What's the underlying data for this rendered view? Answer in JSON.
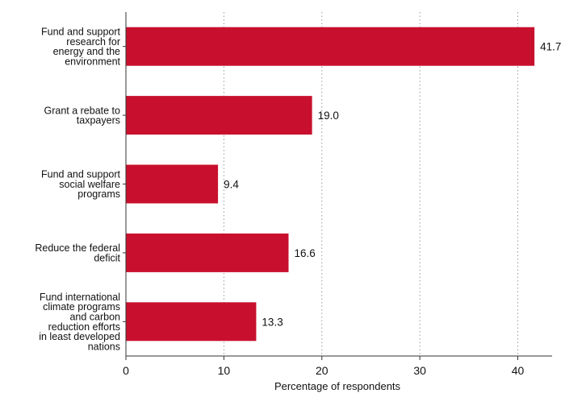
{
  "chart_data": {
    "type": "bar",
    "orientation": "horizontal",
    "categories": [
      "Fund and support research for energy and the environment",
      "Grant a rebate to taxpayers",
      "Fund and support social welfare programs",
      "Reduce the federal deficit",
      "Fund international climate programs and carbon reduction efforts in least developed nations"
    ],
    "category_lines": [
      [
        "Fund and support",
        "research for",
        "energy and the",
        "environment"
      ],
      [
        "Grant a rebate to",
        "taxpayers"
      ],
      [
        "Fund and support",
        "social welfare",
        "programs"
      ],
      [
        "Reduce the federal",
        "deficit"
      ],
      [
        "Fund international",
        "climate programs",
        "and carbon",
        "reduction efforts",
        "in least developed",
        "nations"
      ]
    ],
    "values": [
      41.7,
      19.0,
      9.4,
      16.6,
      13.3
    ],
    "value_labels": [
      "41.7",
      "19.0",
      "9.4",
      "16.6",
      "13.3"
    ],
    "xlabel": "Percentage of respondents",
    "ylabel": "",
    "xlim": [
      0,
      43.5
    ],
    "xticks": [
      0,
      10,
      20,
      30,
      40
    ],
    "xtick_labels": [
      "0",
      "10",
      "20",
      "30",
      "40"
    ],
    "grid": "vertical dotted",
    "legend": "none",
    "colors": {
      "bar": "#c8102e",
      "axis": "#333333",
      "grid": "#9a9a9a",
      "text": "#111111"
    }
  }
}
